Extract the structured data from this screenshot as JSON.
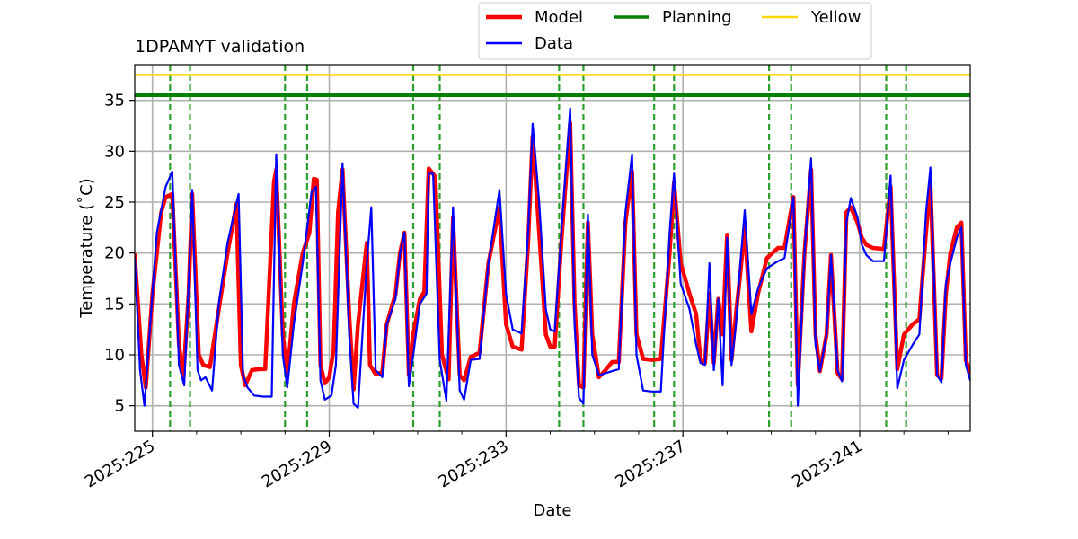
{
  "chart_data": {
    "type": "line",
    "title": "1DPAMYT validation",
    "xlabel": "Date",
    "ylabel": "Temperature ($^\\circ$C)",
    "ylabel_display": "Temperature (˚C)",
    "xlim": [
      224.6,
      243.5
    ],
    "ylim": [
      2.5,
      38.5
    ],
    "x_ticks": [
      225,
      229,
      233,
      237,
      241
    ],
    "x_tick_labels": [
      "2025:225",
      "2025:229",
      "2025:233",
      "2025:237",
      "2025:241"
    ],
    "y_ticks": [
      5,
      10,
      15,
      20,
      25,
      30,
      35
    ],
    "y_tick_labels": [
      "5",
      "10",
      "15",
      "20",
      "25",
      "30",
      "35"
    ],
    "grid": true,
    "legend_position": "top-center, outside plot",
    "legend": [
      {
        "name": "Model",
        "color": "#ff0000"
      },
      {
        "name": "Data",
        "color": "#0000ff"
      },
      {
        "name": "Planning",
        "color": "#008000"
      },
      {
        "name": "Yellow",
        "color": "#ffd700"
      }
    ],
    "limit_lines": [
      {
        "name": "Planning",
        "y": 35.5,
        "color": "#008000"
      },
      {
        "name": "Yellow",
        "y": 37.5,
        "color": "#ffd700"
      }
    ],
    "vertical_markers": {
      "color": "#2ca02c",
      "style": "dashed",
      "x": [
        225.4,
        225.85,
        228.0,
        228.5,
        230.9,
        231.5,
        234.2,
        234.75,
        236.35,
        236.8,
        238.95,
        239.45,
        241.6,
        242.05
      ]
    },
    "series": [
      {
        "name": "Model",
        "color": "#ff0000",
        "points": [
          [
            224.6,
            19.8
          ],
          [
            224.75,
            10
          ],
          [
            224.85,
            6.8
          ],
          [
            225.0,
            16
          ],
          [
            225.2,
            24
          ],
          [
            225.3,
            25.5
          ],
          [
            225.45,
            25.8
          ],
          [
            225.6,
            11
          ],
          [
            225.7,
            7.8
          ],
          [
            225.82,
            16
          ],
          [
            225.9,
            25.8
          ],
          [
            226.05,
            10
          ],
          [
            226.15,
            9.0
          ],
          [
            226.3,
            8.8
          ],
          [
            226.45,
            13
          ],
          [
            226.7,
            20
          ],
          [
            226.9,
            24.8
          ],
          [
            227.0,
            9
          ],
          [
            227.1,
            7.0
          ],
          [
            227.25,
            8.5
          ],
          [
            227.4,
            8.6
          ],
          [
            227.55,
            8.6
          ],
          [
            227.75,
            27
          ],
          [
            227.8,
            28.2
          ],
          [
            227.95,
            12
          ],
          [
            228.05,
            8.0
          ],
          [
            228.2,
            15
          ],
          [
            228.4,
            20
          ],
          [
            228.55,
            22
          ],
          [
            228.65,
            27.3
          ],
          [
            228.72,
            27.2
          ],
          [
            228.8,
            9
          ],
          [
            228.9,
            7.2
          ],
          [
            229.0,
            7.8
          ],
          [
            229.1,
            10.5
          ],
          [
            229.2,
            24
          ],
          [
            229.3,
            28.2
          ],
          [
            229.45,
            14
          ],
          [
            229.55,
            6.6
          ],
          [
            229.65,
            13
          ],
          [
            229.85,
            21
          ],
          [
            229.92,
            9
          ],
          [
            230.05,
            8.1
          ],
          [
            230.2,
            8.3
          ],
          [
            230.3,
            13
          ],
          [
            230.5,
            16
          ],
          [
            230.6,
            20
          ],
          [
            230.7,
            22
          ],
          [
            230.8,
            8.0
          ],
          [
            230.9,
            12
          ],
          [
            231.05,
            15.5
          ],
          [
            231.15,
            16.2
          ],
          [
            231.25,
            28.3
          ],
          [
            231.4,
            27.5
          ],
          [
            231.55,
            10
          ],
          [
            231.7,
            7.6
          ],
          [
            231.8,
            23.5
          ],
          [
            231.95,
            8.0
          ],
          [
            232.05,
            7.5
          ],
          [
            232.2,
            9.8
          ],
          [
            232.4,
            10.2
          ],
          [
            232.6,
            19
          ],
          [
            232.85,
            24.5
          ],
          [
            233.0,
            13
          ],
          [
            233.15,
            10.8
          ],
          [
            233.35,
            10.5
          ],
          [
            233.5,
            21
          ],
          [
            233.6,
            31.5
          ],
          [
            233.75,
            22
          ],
          [
            233.9,
            12
          ],
          [
            234.0,
            10.8
          ],
          [
            234.1,
            10.8
          ],
          [
            234.25,
            21
          ],
          [
            234.45,
            32.8
          ],
          [
            234.55,
            15
          ],
          [
            234.65,
            7.0
          ],
          [
            234.75,
            6.8
          ],
          [
            234.85,
            23
          ],
          [
            234.95,
            12
          ],
          [
            235.1,
            7.8
          ],
          [
            235.25,
            8.5
          ],
          [
            235.4,
            9.3
          ],
          [
            235.55,
            9.3
          ],
          [
            235.7,
            23
          ],
          [
            235.85,
            28
          ],
          [
            235.95,
            12
          ],
          [
            236.1,
            9.6
          ],
          [
            236.3,
            9.5
          ],
          [
            236.5,
            9.6
          ],
          [
            236.7,
            20
          ],
          [
            236.8,
            27
          ],
          [
            236.95,
            19
          ],
          [
            237.15,
            16
          ],
          [
            237.3,
            14
          ],
          [
            237.4,
            9.5
          ],
          [
            237.5,
            9.2
          ],
          [
            237.6,
            16
          ],
          [
            237.7,
            9.2
          ],
          [
            237.8,
            15.5
          ],
          [
            237.9,
            12
          ],
          [
            238.0,
            21.8
          ],
          [
            238.1,
            9.5
          ],
          [
            238.2,
            14
          ],
          [
            238.3,
            18
          ],
          [
            238.4,
            22.5
          ],
          [
            238.55,
            12.3
          ],
          [
            238.7,
            16
          ],
          [
            238.9,
            19.5
          ],
          [
            239.15,
            20.5
          ],
          [
            239.3,
            20.5
          ],
          [
            239.5,
            25.5
          ],
          [
            239.6,
            7.0
          ],
          [
            239.75,
            20
          ],
          [
            239.9,
            28.2
          ],
          [
            240.0,
            12
          ],
          [
            240.1,
            8.4
          ],
          [
            240.25,
            12
          ],
          [
            240.35,
            19.8
          ],
          [
            240.5,
            8.2
          ],
          [
            240.6,
            7.6
          ],
          [
            240.7,
            24
          ],
          [
            240.8,
            24.5
          ],
          [
            240.95,
            23
          ],
          [
            241.05,
            21.5
          ],
          [
            241.15,
            20.8
          ],
          [
            241.3,
            20.5
          ],
          [
            241.55,
            20.4
          ],
          [
            241.7,
            26.5
          ],
          [
            241.85,
            8.6
          ],
          [
            242.0,
            12
          ],
          [
            242.2,
            13
          ],
          [
            242.35,
            13.5
          ],
          [
            242.5,
            22
          ],
          [
            242.6,
            27
          ],
          [
            242.75,
            8.0
          ],
          [
            242.85,
            7.7
          ],
          [
            242.95,
            16
          ],
          [
            243.05,
            20
          ],
          [
            243.2,
            22.5
          ],
          [
            243.3,
            23
          ],
          [
            243.4,
            9.5
          ],
          [
            243.5,
            8.3
          ]
        ]
      },
      {
        "name": "Data",
        "color": "#0000ff",
        "points": [
          [
            224.6,
            19.5
          ],
          [
            224.72,
            8.5
          ],
          [
            224.82,
            5.0
          ],
          [
            224.95,
            13
          ],
          [
            225.1,
            22
          ],
          [
            225.3,
            26.5
          ],
          [
            225.45,
            28
          ],
          [
            225.6,
            9
          ],
          [
            225.72,
            7.0
          ],
          [
            225.82,
            17
          ],
          [
            225.9,
            26.2
          ],
          [
            226.02,
            8.5
          ],
          [
            226.1,
            7.5
          ],
          [
            226.2,
            7.8
          ],
          [
            226.35,
            6.5
          ],
          [
            226.5,
            15
          ],
          [
            226.7,
            21
          ],
          [
            226.95,
            25.8
          ],
          [
            227.05,
            8
          ],
          [
            227.15,
            6.8
          ],
          [
            227.3,
            6.0
          ],
          [
            227.5,
            5.9
          ],
          [
            227.7,
            5.9
          ],
          [
            227.8,
            29.7
          ],
          [
            227.95,
            10
          ],
          [
            228.05,
            6.8
          ],
          [
            228.2,
            13
          ],
          [
            228.4,
            19
          ],
          [
            228.6,
            26
          ],
          [
            228.7,
            26.5
          ],
          [
            228.8,
            7.5
          ],
          [
            228.9,
            5.6
          ],
          [
            229.05,
            6.0
          ],
          [
            229.15,
            9
          ],
          [
            229.3,
            28.8
          ],
          [
            229.45,
            12
          ],
          [
            229.55,
            5.2
          ],
          [
            229.65,
            4.8
          ],
          [
            229.85,
            19
          ],
          [
            229.95,
            24.5
          ],
          [
            230.05,
            8.5
          ],
          [
            230.2,
            7.8
          ],
          [
            230.3,
            13
          ],
          [
            230.5,
            15.5
          ],
          [
            230.6,
            20
          ],
          [
            230.7,
            22
          ],
          [
            230.8,
            6.9
          ],
          [
            230.9,
            10
          ],
          [
            231.05,
            15
          ],
          [
            231.2,
            16
          ],
          [
            231.25,
            27.8
          ],
          [
            231.35,
            27.8
          ],
          [
            231.5,
            9.5
          ],
          [
            231.65,
            5.5
          ],
          [
            231.8,
            24.5
          ],
          [
            231.95,
            6.5
          ],
          [
            232.05,
            5.6
          ],
          [
            232.2,
            9.5
          ],
          [
            232.4,
            9.6
          ],
          [
            232.6,
            19
          ],
          [
            232.85,
            26.2
          ],
          [
            233.0,
            16
          ],
          [
            233.15,
            12.5
          ],
          [
            233.35,
            12.1
          ],
          [
            233.5,
            22
          ],
          [
            233.6,
            32.7
          ],
          [
            233.75,
            25
          ],
          [
            233.9,
            14.5
          ],
          [
            234.0,
            12.5
          ],
          [
            234.1,
            12.3
          ],
          [
            234.25,
            22
          ],
          [
            234.45,
            34.2
          ],
          [
            234.55,
            13
          ],
          [
            234.65,
            5.8
          ],
          [
            234.75,
            5.2
          ],
          [
            234.85,
            23.8
          ],
          [
            234.95,
            10
          ],
          [
            235.1,
            8.0
          ],
          [
            235.25,
            8.2
          ],
          [
            235.4,
            8.4
          ],
          [
            235.55,
            8.6
          ],
          [
            235.7,
            24
          ],
          [
            235.85,
            29.7
          ],
          [
            235.95,
            10
          ],
          [
            236.1,
            6.5
          ],
          [
            236.3,
            6.4
          ],
          [
            236.5,
            6.4
          ],
          [
            236.7,
            22
          ],
          [
            236.8,
            27.8
          ],
          [
            236.95,
            17
          ],
          [
            237.15,
            14.5
          ],
          [
            237.3,
            11
          ],
          [
            237.4,
            9.2
          ],
          [
            237.5,
            9.0
          ],
          [
            237.6,
            19
          ],
          [
            237.7,
            8.5
          ],
          [
            237.8,
            15.5
          ],
          [
            237.9,
            7.0
          ],
          [
            238.0,
            21.5
          ],
          [
            238.1,
            9.0
          ],
          [
            238.2,
            13
          ],
          [
            238.3,
            19
          ],
          [
            238.4,
            24.2
          ],
          [
            238.55,
            14
          ],
          [
            238.7,
            16.5
          ],
          [
            238.9,
            18.5
          ],
          [
            239.15,
            19.2
          ],
          [
            239.3,
            19.5
          ],
          [
            239.5,
            25.5
          ],
          [
            239.6,
            5.0
          ],
          [
            239.75,
            20
          ],
          [
            239.9,
            29.3
          ],
          [
            240.0,
            11
          ],
          [
            240.1,
            8.4
          ],
          [
            240.25,
            12
          ],
          [
            240.35,
            19.8
          ],
          [
            240.5,
            8.5
          ],
          [
            240.6,
            7.4
          ],
          [
            240.7,
            23
          ],
          [
            240.8,
            25.4
          ],
          [
            240.95,
            23.5
          ],
          [
            241.05,
            20.8
          ],
          [
            241.15,
            19.8
          ],
          [
            241.3,
            19.2
          ],
          [
            241.55,
            19.2
          ],
          [
            241.7,
            27.6
          ],
          [
            241.85,
            6.7
          ],
          [
            242.0,
            9.5
          ],
          [
            242.2,
            11
          ],
          [
            242.35,
            12
          ],
          [
            242.5,
            24
          ],
          [
            242.6,
            28.4
          ],
          [
            242.75,
            8.0
          ],
          [
            242.85,
            7.3
          ],
          [
            242.95,
            17
          ],
          [
            243.05,
            19
          ],
          [
            243.2,
            21.5
          ],
          [
            243.3,
            22.5
          ],
          [
            243.4,
            9.0
          ],
          [
            243.5,
            7.5
          ]
        ]
      }
    ]
  }
}
